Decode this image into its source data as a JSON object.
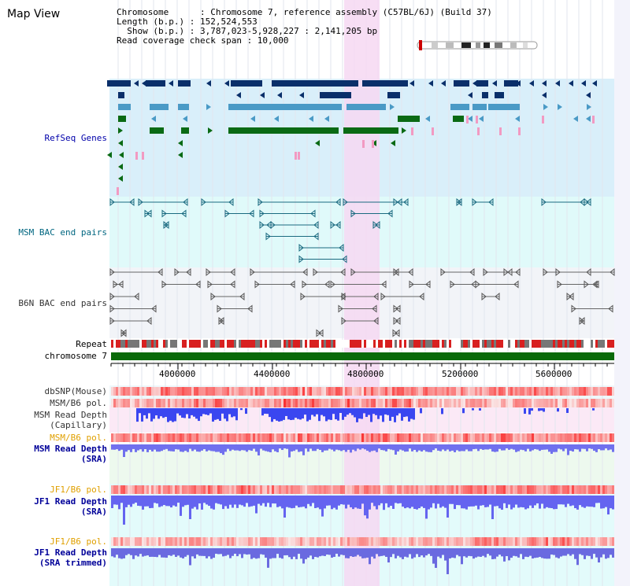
{
  "title": "Map View",
  "info": {
    "line1": "Chromosome      : Chromosome 7, reference assembly (C57BL/6J) (Build 37)",
    "line2": "Length (b.p.) : 152,524,553",
    "line3": "  Show (b.p.) : 3,787,023-5,928,227 : 2,141,205 bp",
    "line4": "Read coverage check span : 10,000"
  },
  "tracks": {
    "refseq": "RefSeq Genes",
    "msm_bac": "MSM BAC end pairs",
    "b6n_bac": "B6N BAC end pairs",
    "repeat": "Repeat",
    "chromosome": "chromosome 7",
    "dbsnp": "dbSNP(Mouse)",
    "msm_b6_pol": "MSM/B6 pol.",
    "msm_depth_cap_1": "MSM Read Depth",
    "msm_depth_cap_2": "(Capillary)",
    "msm_b6_pol2": "MSM/B6 pol.",
    "msm_depth_sra_1": "MSM Read Depth",
    "msm_depth_sra_2": "(SRA)",
    "jf1_pol": "JF1/B6 pol.",
    "jf1_depth_1": "JF1 Read Depth",
    "jf1_depth_2": "(SRA)",
    "jf1_pol2": "JF1/B6 pol.",
    "jf1_trim_1": "JF1 Read Depth",
    "jf1_trim_2": "(SRA trimmed)"
  },
  "axis": {
    "ticks": [
      "4000000",
      "4400000",
      "4800000",
      "5200000",
      "5600000"
    ]
  },
  "colors": {
    "refseq_bg": "#d9effa",
    "msm_bg": "#e0fafa",
    "b6n_bg": "#f2f4f8",
    "highlight": "#f6d8f2",
    "gene_navy": "#0a2f6a",
    "gene_light": "#4a9ac6",
    "gene_green": "#0a6a14",
    "gene_pink": "#f29ac2",
    "chrom_green": "#0a6a0a"
  }
}
